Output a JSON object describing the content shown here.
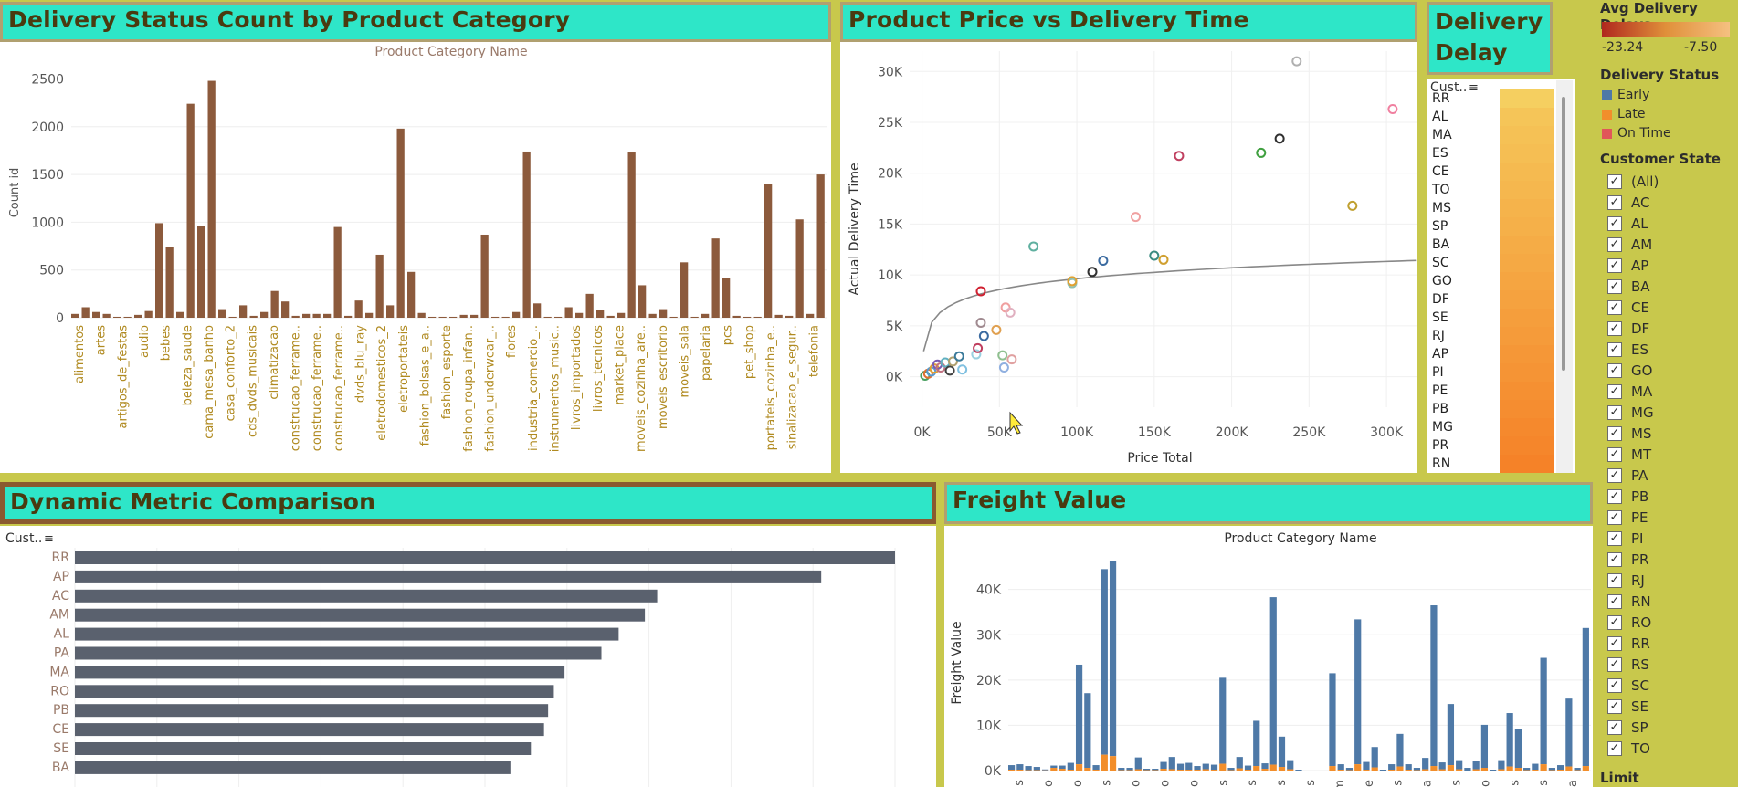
{
  "titles": {
    "status": "Delivery Status Count by Product Category",
    "price": "Product Price vs Delivery Time",
    "delay": "Delivery Delay",
    "dynamic": "Dynamic Metric Comparison",
    "freight": "Freight Value"
  },
  "chart_status": {
    "type": "bar",
    "top_label": "Product Category Name",
    "ylabel": "Count id",
    "ylim": [
      0,
      2600
    ],
    "yticks": [
      0,
      500,
      1000,
      1500,
      2000,
      2500
    ],
    "values": [
      40,
      110,
      60,
      40,
      10,
      10,
      30,
      70,
      990,
      740,
      60,
      2240,
      960,
      2480,
      90,
      10,
      130,
      20,
      60,
      280,
      170,
      20,
      40,
      40,
      40,
      950,
      20,
      180,
      50,
      660,
      130,
      1980,
      480,
      50,
      10,
      10,
      10,
      30,
      30,
      870,
      10,
      10,
      60,
      1740,
      150,
      10,
      10,
      110,
      50,
      250,
      80,
      20,
      50,
      1730,
      340,
      40,
      90,
      10,
      580,
      10,
      40,
      830,
      420,
      20,
      10,
      10,
      1400,
      30,
      20,
      1030,
      40,
      1500
    ],
    "labels": [
      "alimentos",
      "artes",
      "artigos_de_festas",
      "audio",
      "bebes",
      "beleza_saude",
      "cama_mesa_banho",
      "casa_conforto_2",
      "cds_dvds_musicais",
      "climatizacao",
      "construcao_ferrame..",
      "construcao_ferrame..",
      "construcao_ferrame..",
      "dvds_blu_ray",
      "eletrodomesticos_2",
      "eletroportateis",
      "fashion_bolsas_e_a..",
      "fashion_esporte",
      "fashion_roupa_infan..",
      "fashion_underwear_..",
      "flores",
      "industria_comercio_..",
      "instrumentos_music..",
      "livros_importados",
      "livros_tecnicos",
      "market_place",
      "moveis_cozinha_are..",
      "moveis_escritorio",
      "moveis_sala",
      "papelaria",
      "pcs",
      "pet_shop",
      "portateis_cozinha_e..",
      "sinalizacao_e_segur..",
      "telefonia"
    ]
  },
  "chart_price": {
    "type": "scatter",
    "xlabel": "Price Total",
    "ylabel": "Actual Delivery Time",
    "xticks": [
      "0K",
      "50K",
      "100K",
      "150K",
      "200K",
      "250K",
      "300K"
    ],
    "yticks": [
      "0K",
      "5K",
      "10K",
      "15K",
      "20K",
      "25K",
      "30K"
    ],
    "xlim": [
      -8000,
      320000
    ],
    "ylim": [
      -3000,
      32000
    ],
    "points": [
      {
        "x": 2000,
        "y": 100,
        "c": "#4aa060"
      },
      {
        "x": 4000,
        "y": 300,
        "c": "#e07030"
      },
      {
        "x": 6000,
        "y": 500,
        "c": "#5a9ad0"
      },
      {
        "x": 8000,
        "y": 800,
        "c": "#e0a030"
      },
      {
        "x": 10000,
        "y": 1200,
        "c": "#7a5ab0"
      },
      {
        "x": 12000,
        "y": 900,
        "c": "#c07080"
      },
      {
        "x": 15000,
        "y": 1400,
        "c": "#60b0c0"
      },
      {
        "x": 18000,
        "y": 600,
        "c": "#404040"
      },
      {
        "x": 20000,
        "y": 1500,
        "c": "#b0a070"
      },
      {
        "x": 24000,
        "y": 2000,
        "c": "#3a7a9a"
      },
      {
        "x": 26000,
        "y": 700,
        "c": "#80c0e0"
      },
      {
        "x": 35000,
        "y": 2200,
        "c": "#9ad0e0"
      },
      {
        "x": 36000,
        "y": 2800,
        "c": "#c04060"
      },
      {
        "x": 38000,
        "y": 5300,
        "c": "#a08a90"
      },
      {
        "x": 40000,
        "y": 4000,
        "c": "#3a6aa0"
      },
      {
        "x": 38000,
        "y": 8400,
        "c": "#d02030"
      },
      {
        "x": 48000,
        "y": 4600,
        "c": "#e0a050"
      },
      {
        "x": 52000,
        "y": 2100,
        "c": "#90c090"
      },
      {
        "x": 53000,
        "y": 900,
        "c": "#90b0e0"
      },
      {
        "x": 54000,
        "y": 6800,
        "c": "#f0a0a0"
      },
      {
        "x": 57000,
        "y": 6300,
        "c": "#e0b0c0"
      },
      {
        "x": 58000,
        "y": 1700,
        "c": "#e0a0a0"
      },
      {
        "x": 72000,
        "y": 12800,
        "c": "#60b0a0"
      },
      {
        "x": 97000,
        "y": 9200,
        "c": "#90c0b0"
      },
      {
        "x": 97000,
        "y": 9400,
        "c": "#e0a030"
      },
      {
        "x": 110000,
        "y": 10300,
        "c": "#303030"
      },
      {
        "x": 117000,
        "y": 11400,
        "c": "#3a6aa0"
      },
      {
        "x": 138000,
        "y": 15700,
        "c": "#f0a0a0"
      },
      {
        "x": 150000,
        "y": 11900,
        "c": "#3a8a80"
      },
      {
        "x": 156000,
        "y": 11500,
        "c": "#d0a030"
      },
      {
        "x": 166000,
        "y": 21700,
        "c": "#c04060"
      },
      {
        "x": 219000,
        "y": 22000,
        "c": "#40a040"
      },
      {
        "x": 231000,
        "y": 23400,
        "c": "#303030"
      },
      {
        "x": 242000,
        "y": 31000,
        "c": "#b0b0b0"
      },
      {
        "x": 278000,
        "y": 16800,
        "c": "#c0a030"
      },
      {
        "x": 304000,
        "y": 26300,
        "c": "#f080a0"
      }
    ]
  },
  "delay_table": {
    "header": "Cust..",
    "states": [
      "RR",
      "AL",
      "MA",
      "ES",
      "CE",
      "TO",
      "MS",
      "SP",
      "BA",
      "SC",
      "GO",
      "DF",
      "SE",
      "RJ",
      "AP",
      "PI",
      "PE",
      "PB",
      "MG",
      "PR",
      "RN"
    ]
  },
  "chart_dynamic": {
    "type": "bar",
    "header": "Cust..",
    "categories": [
      "RR",
      "AP",
      "AC",
      "AM",
      "AL",
      "PA",
      "MA",
      "RO",
      "PB",
      "CE",
      "SE",
      "BA"
    ],
    "values": [
      100,
      91,
      71,
      69.5,
      66.3,
      64.2,
      59.7,
      58.4,
      57.7,
      57.2,
      55.6,
      53.1
    ]
  },
  "chart_freight": {
    "type": "bar",
    "top_label": "Product Category Name",
    "ylabel": "Freight Value",
    "yticks": [
      "0K",
      "10K",
      "20K",
      "30K",
      "40K"
    ],
    "ymax": 48000,
    "early": [
      1000,
      1200,
      900,
      700,
      200,
      500,
      700,
      1500,
      22000,
      16500,
      1000,
      41000,
      43000,
      500,
      500,
      2600,
      300,
      300,
      1500,
      2700,
      1300,
      1500,
      800,
      1200,
      1100,
      19000,
      500,
      2500,
      900,
      10000,
      1200,
      37000,
      6700,
      2000,
      200,
      0,
      0,
      0,
      20500,
      1200,
      500,
      32000,
      1700,
      4500,
      200,
      1200,
      7200,
      1200,
      500,
      2500,
      35500,
      1500,
      13500,
      2000,
      600,
      1800,
      9500,
      200,
      2000,
      11800,
      8500,
      500,
      1300,
      23500,
      500,
      1000,
      15000,
      500,
      30500
    ],
    "late": [
      200,
      200,
      100,
      100,
      50,
      600,
      400,
      200,
      1400,
      600,
      200,
      3500,
      3200,
      100,
      100,
      300,
      100,
      100,
      400,
      300,
      200,
      200,
      200,
      300,
      200,
      1500,
      100,
      500,
      200,
      1000,
      400,
      1300,
      800,
      300,
      0,
      0,
      0,
      0,
      1000,
      200,
      100,
      1400,
      200,
      700,
      0,
      200,
      900,
      200,
      100,
      300,
      1000,
      300,
      1200,
      300,
      0,
      300,
      600,
      0,
      300,
      900,
      600,
      100,
      200,
      1400,
      100,
      200,
      900,
      100,
      1000
    ],
    "ticklabels": [
      "s",
      "o",
      "o",
      "s",
      "o",
      "o",
      "o",
      "s",
      "s",
      "s",
      "s",
      "m",
      "e",
      "s",
      "a",
      "s",
      "o",
      "s",
      "s",
      "a"
    ]
  },
  "legend": {
    "avg_title": "Avg Delivery Delays",
    "avg_min": "-23.24",
    "avg_max": "-7.50",
    "status_title": "Delivery Status",
    "status_items": [
      {
        "label": "Early",
        "color": "#4e79a7"
      },
      {
        "label": "Late",
        "color": "#f28e2b"
      },
      {
        "label": "On Time",
        "color": "#e15759"
      }
    ],
    "state_title": "Customer State",
    "states": [
      "(All)",
      "AC",
      "AL",
      "AM",
      "AP",
      "BA",
      "CE",
      "DF",
      "ES",
      "GO",
      "MA",
      "MG",
      "MS",
      "MT",
      "PA",
      "PB",
      "PE",
      "PI",
      "PR",
      "RJ",
      "RN",
      "RO",
      "RR",
      "RS",
      "SC",
      "SE",
      "SP",
      "TO"
    ],
    "limit": "Limit"
  }
}
